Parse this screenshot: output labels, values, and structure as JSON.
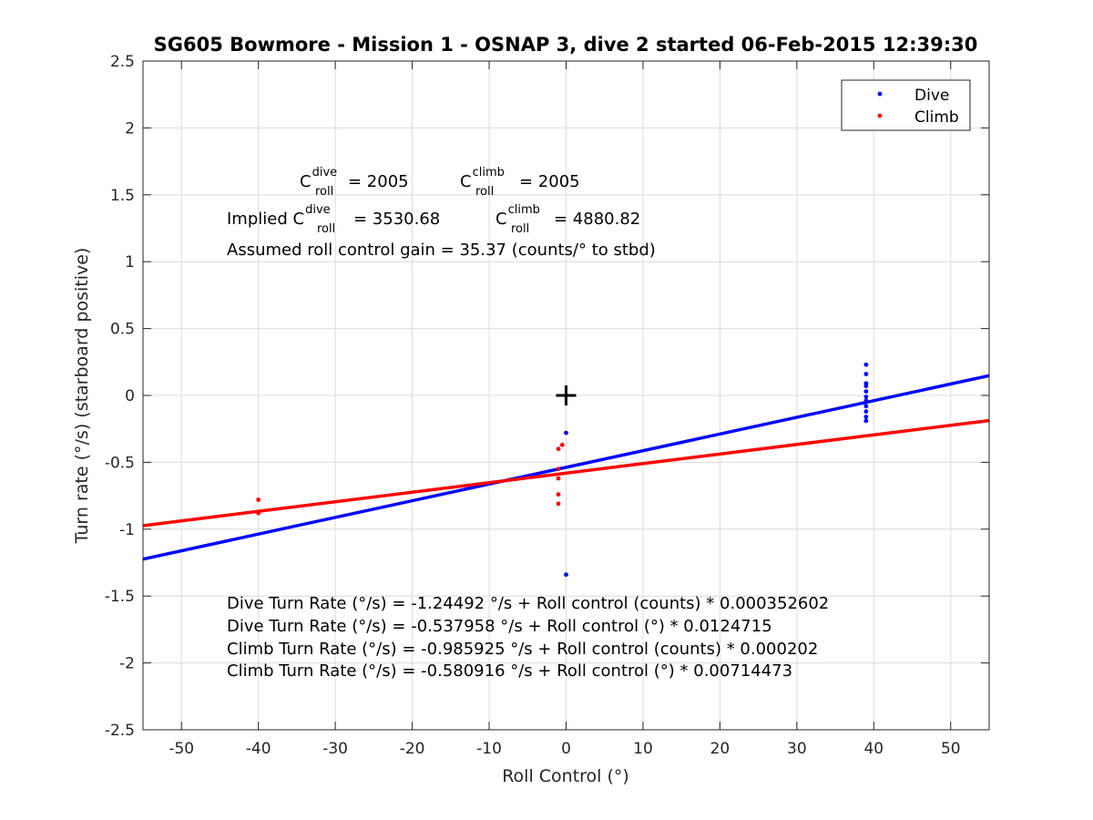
{
  "chart_data": {
    "type": "scatter",
    "title": "SG605 Bowmore - Mission 1 - OSNAP 3, dive 2 started 06-Feb-2015 12:39:30",
    "xlabel": "Roll Control (°)",
    "ylabel": "Turn rate (°/s) (starboard positive)",
    "xlim": [
      -55,
      55
    ],
    "ylim": [
      -2.5,
      2.5
    ],
    "xticks": [
      -50,
      -40,
      -30,
      -20,
      -10,
      0,
      10,
      20,
      30,
      40,
      50
    ],
    "yticks": [
      -2.5,
      -2,
      -1.5,
      -1,
      -0.5,
      0,
      0.5,
      1,
      1.5,
      2,
      2.5
    ],
    "grid": true,
    "legend_position": "top-right",
    "series": [
      {
        "name": "Dive",
        "color": "#0000ff",
        "points": [
          [
            0,
            -0.28
          ],
          [
            0,
            -1.34
          ],
          [
            39,
            0.23
          ],
          [
            39,
            0.16
          ],
          [
            39,
            0.09
          ],
          [
            39,
            0.07
          ],
          [
            39,
            0.03
          ],
          [
            39,
            -0.01
          ],
          [
            39,
            -0.04
          ],
          [
            39,
            -0.08
          ],
          [
            39,
            -0.12
          ],
          [
            39,
            -0.16
          ],
          [
            39,
            -0.19
          ]
        ],
        "fit": {
          "intercept": -0.537958,
          "slope": 0.0124715
        }
      },
      {
        "name": "Climb",
        "color": "#ff0000",
        "points": [
          [
            -40,
            -0.78
          ],
          [
            -40,
            -0.88
          ],
          [
            -1,
            -0.4
          ],
          [
            -0.5,
            -0.37
          ],
          [
            -1,
            -0.55
          ],
          [
            -1,
            -0.62
          ],
          [
            -1,
            -0.74
          ],
          [
            -1,
            -0.81
          ]
        ],
        "fit": {
          "intercept": -0.580916,
          "slope": 0.00714473
        }
      }
    ],
    "marker": {
      "x": 0,
      "y": 0,
      "symbol": "+",
      "color": "#000000"
    },
    "annotations": {
      "c_letter": "C",
      "sub_roll": "roll",
      "sup_dive": "dive",
      "sup_climb": "climb",
      "eq_2005": " = 2005",
      "implied_prefix": "Implied ",
      "implied_dive_value": " = 3530.68",
      "implied_climb_value": " = 4880.82",
      "gain_line": "Assumed roll control gain = 35.37 (counts/° to stbd)",
      "eq_lines": [
        "Dive Turn Rate (°/s) = -1.24492 °/s + Roll control (counts) * 0.000352602",
        "Dive Turn Rate (°/s) = -0.537958 °/s + Roll control (°) * 0.0124715",
        "Climb Turn Rate (°/s) = -0.985925 °/s + Roll control (counts) * 0.000202",
        "Climb Turn Rate (°/s) = -0.580916 °/s + Roll control (°) * 0.00714473"
      ]
    }
  }
}
